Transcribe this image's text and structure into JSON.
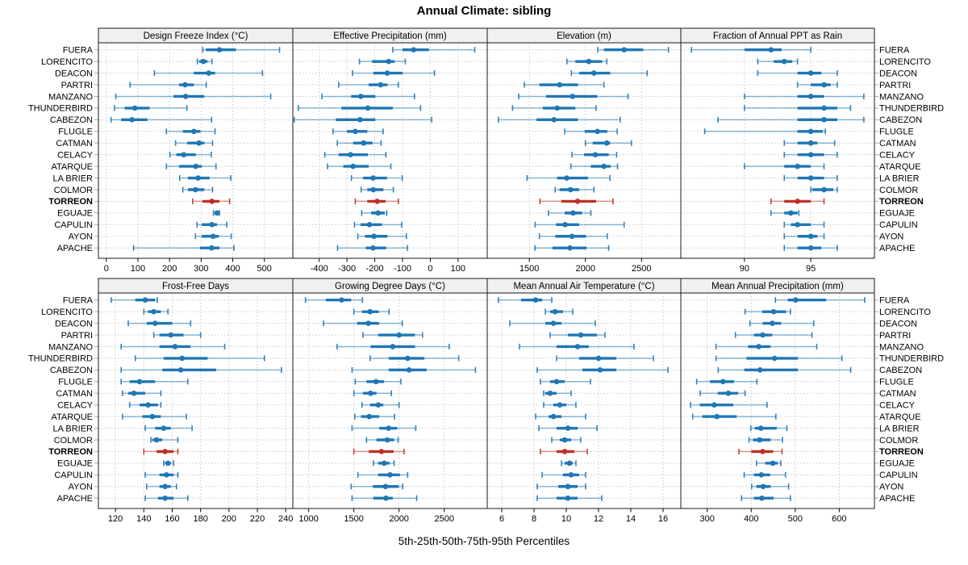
{
  "title": "Annual Climate: sibling",
  "caption": "5th-25th-50th-75th-95th Percentiles",
  "colors": {
    "series": "#1f77b4",
    "highlight": "#c03127",
    "strip_bg": "#f0f0f0",
    "grid": "#c8c8c8",
    "border": "#1a1a1a",
    "outer_tick": "#ababab"
  },
  "chart_data": {
    "type": "percentile-dotplot",
    "layout": "2x4 trellis, free x scales, shared station category axis, labels on both sides",
    "percentiles": [
      5,
      25,
      50,
      75,
      95
    ],
    "categories": [
      "FUERA",
      "LORENCITO",
      "DEACON",
      "PARTRI",
      "MANZANO",
      "THUNDERBIRD",
      "CABEZON",
      "FLUGLE",
      "CATMAN",
      "CELACY",
      "ATARQUE",
      "LA BRIER",
      "COLMOR",
      "TORREON",
      "EGUAJE",
      "CAPULIN",
      "AYON",
      "APACHE"
    ],
    "highlight": "TORREON",
    "panels": [
      {
        "title": "Design Freeze Index (°C)",
        "ticks": [
          0,
          100,
          200,
          300,
          400,
          500
        ],
        "xlim": [
          -25,
          590
        ],
        "values": [
          [
            305,
            315,
            358,
            410,
            548
          ],
          [
            288,
            294,
            307,
            320,
            334
          ],
          [
            152,
            277,
            324,
            344,
            494
          ],
          [
            75,
            230,
            249,
            277,
            316
          ],
          [
            30,
            213,
            251,
            310,
            520
          ],
          [
            26,
            58,
            90,
            137,
            255
          ],
          [
            15,
            47,
            81,
            130,
            333
          ],
          [
            190,
            242,
            277,
            298,
            344
          ],
          [
            219,
            256,
            293,
            310,
            336
          ],
          [
            201,
            222,
            245,
            283,
            332
          ],
          [
            190,
            230,
            283,
            302,
            347
          ],
          [
            232,
            258,
            290,
            327,
            394
          ],
          [
            242,
            258,
            282,
            310,
            336
          ],
          [
            273,
            304,
            334,
            358,
            390
          ],
          [
            339,
            345,
            350,
            354,
            358
          ],
          [
            287,
            302,
            334,
            350,
            381
          ],
          [
            282,
            302,
            338,
            356,
            395
          ],
          [
            86,
            296,
            333,
            358,
            404
          ]
        ]
      },
      {
        "title": "Effective Precipitation (mm)",
        "ticks": [
          -400,
          -300,
          -200,
          -100,
          0,
          100
        ],
        "xlim": [
          -495,
          205
        ],
        "values": [
          [
            -135,
            -100,
            -60,
            -5,
            160
          ],
          [
            -255,
            -210,
            -150,
            -128,
            -90
          ],
          [
            -280,
            -205,
            -155,
            -100,
            15
          ],
          [
            -330,
            -222,
            -179,
            -154,
            -115
          ],
          [
            -390,
            -285,
            -250,
            -198,
            -57
          ],
          [
            -475,
            -320,
            -225,
            -135,
            -35
          ],
          [
            -490,
            -340,
            -253,
            -198,
            5
          ],
          [
            -350,
            -300,
            -270,
            -227,
            -170
          ],
          [
            -335,
            -278,
            -240,
            -208,
            -177
          ],
          [
            -380,
            -330,
            -287,
            -225,
            -160
          ],
          [
            -370,
            -313,
            -278,
            -222,
            -142
          ],
          [
            -284,
            -242,
            -206,
            -156,
            -101
          ],
          [
            -249,
            -227,
            -205,
            -169,
            -133
          ],
          [
            -270,
            -227,
            -191,
            -161,
            -115
          ],
          [
            -247,
            -213,
            -188,
            -164,
            -157
          ],
          [
            -273,
            -251,
            -219,
            -174,
            -103
          ],
          [
            -261,
            -235,
            -203,
            -154,
            -86
          ],
          [
            -334,
            -232,
            -206,
            -159,
            -82
          ]
        ]
      },
      {
        "title": "Elevation (m)",
        "ticks": [
          1500,
          2000,
          2500
        ],
        "xlim": [
          1125,
          2850
        ],
        "values": [
          [
            2110,
            2165,
            2345,
            2515,
            2740
          ],
          [
            1835,
            1910,
            2030,
            2148,
            2190
          ],
          [
            1875,
            1945,
            2075,
            2220,
            2550
          ],
          [
            1455,
            1590,
            1770,
            1935,
            2165
          ],
          [
            1405,
            1650,
            1885,
            2105,
            2380
          ],
          [
            1350,
            1620,
            1748,
            1910,
            2095
          ],
          [
            1225,
            1565,
            1720,
            1933,
            2310
          ],
          [
            1815,
            1993,
            2107,
            2195,
            2283
          ],
          [
            2000,
            2065,
            2190,
            2220,
            2410
          ],
          [
            1880,
            1988,
            2088,
            2207,
            2278
          ],
          [
            1870,
            2048,
            2164,
            2224,
            2286
          ],
          [
            1480,
            1748,
            1833,
            2024,
            2219
          ],
          [
            1730,
            1770,
            1867,
            1945,
            2076
          ],
          [
            1595,
            1785,
            1930,
            2095,
            2245
          ],
          [
            1670,
            1815,
            1890,
            1970,
            2048
          ],
          [
            1552,
            1738,
            1819,
            1945,
            2345
          ],
          [
            1590,
            1731,
            1881,
            2005,
            2195
          ],
          [
            1550,
            1707,
            1862,
            2010,
            2207
          ]
        ]
      },
      {
        "title": "Fraction of Annual PPT as Rain",
        "ticks": [
          90,
          95
        ],
        "xlim": [
          85.2,
          99.8
        ],
        "values": [
          [
            86,
            90,
            92,
            92.8,
            95
          ],
          [
            91,
            92.2,
            93,
            93.6,
            94
          ],
          [
            91,
            94,
            95,
            95.8,
            97
          ],
          [
            94,
            95,
            96,
            96.5,
            97
          ],
          [
            90,
            94,
            95,
            96,
            99
          ],
          [
            90,
            94,
            96,
            97,
            98
          ],
          [
            88,
            94,
            96,
            97,
            99
          ],
          [
            87,
            94,
            95,
            95.9,
            96.1
          ],
          [
            93,
            94,
            95,
            95.5,
            96.8
          ],
          [
            93,
            94,
            95,
            96,
            97
          ],
          [
            90,
            93,
            94,
            95,
            96
          ],
          [
            93,
            94,
            95,
            96,
            97
          ],
          [
            95,
            95.1,
            96,
            96.7,
            97
          ],
          [
            92,
            93,
            94,
            95,
            96
          ],
          [
            92,
            93,
            93.5,
            94,
            94.1
          ],
          [
            93,
            93.5,
            94,
            95,
            96
          ],
          [
            93,
            94,
            95,
            95.5,
            96
          ],
          [
            93,
            94,
            95,
            95.8,
            97
          ]
        ]
      },
      {
        "title": "Frost-Free Days",
        "ticks": [
          120,
          140,
          160,
          180,
          200,
          220,
          240
        ],
        "xlim": [
          108,
          245
        ],
        "values": [
          [
            117,
            134,
            141,
            148,
            149.5
          ],
          [
            140,
            143,
            147,
            152,
            157
          ],
          [
            129,
            142,
            148,
            160,
            173
          ],
          [
            147,
            151,
            159,
            168,
            180
          ],
          [
            124,
            151,
            162,
            173,
            197
          ],
          [
            134,
            154,
            167,
            185,
            225
          ],
          [
            124,
            153,
            166,
            191,
            237
          ],
          [
            124,
            130,
            137,
            148,
            171
          ],
          [
            125,
            129,
            133,
            141,
            152
          ],
          [
            130,
            137,
            143,
            150,
            152
          ],
          [
            125,
            139,
            146,
            152,
            170
          ],
          [
            141,
            148,
            154,
            159,
            174
          ],
          [
            145,
            146,
            149,
            153,
            164
          ],
          [
            140,
            149,
            155,
            161,
            164
          ],
          [
            154,
            155,
            157,
            159,
            161
          ],
          [
            141,
            151,
            156,
            161,
            164
          ],
          [
            142,
            151,
            155,
            159,
            163
          ],
          [
            141,
            150,
            155,
            161,
            171
          ]
        ]
      },
      {
        "title": "Growing Degree Days (°C)",
        "ticks": [
          1000,
          1500,
          2000,
          2500
        ],
        "xlim": [
          825,
          2975
        ],
        "values": [
          [
            965,
            1190,
            1365,
            1470,
            1595
          ],
          [
            1500,
            1590,
            1680,
            1775,
            1890
          ],
          [
            1165,
            1535,
            1660,
            1780,
            2035
          ],
          [
            1600,
            1770,
            2000,
            2175,
            2260
          ],
          [
            1315,
            1685,
            1930,
            2175,
            2555
          ],
          [
            1680,
            1885,
            2095,
            2280,
            2660
          ],
          [
            1480,
            1885,
            2110,
            2305,
            2845
          ],
          [
            1515,
            1640,
            1745,
            1835,
            2020
          ],
          [
            1500,
            1600,
            1685,
            1750,
            1915
          ],
          [
            1590,
            1680,
            1770,
            1825,
            2000
          ],
          [
            1510,
            1580,
            1670,
            1780,
            1950
          ],
          [
            1480,
            1780,
            1885,
            1980,
            2185
          ],
          [
            1640,
            1750,
            1870,
            1945,
            1990
          ],
          [
            1500,
            1665,
            1805,
            1940,
            2055
          ],
          [
            1715,
            1770,
            1835,
            1895,
            1945
          ],
          [
            1545,
            1770,
            1900,
            2010,
            2095
          ],
          [
            1470,
            1710,
            1850,
            1995,
            2040
          ],
          [
            1480,
            1715,
            1855,
            1930,
            2195
          ]
        ]
      },
      {
        "title": "Mean Annual Air Temperature (°C)",
        "ticks": [
          6,
          8,
          10,
          12,
          14,
          16
        ],
        "xlim": [
          5.1,
          17.1
        ],
        "values": [
          [
            5.8,
            7.2,
            8.1,
            8.5,
            9.1
          ],
          [
            8.7,
            9.0,
            9.3,
            9.8,
            10.4
          ],
          [
            6.5,
            8.7,
            9.2,
            9.7,
            11.8
          ],
          [
            9.0,
            10.1,
            10.9,
            11.9,
            12.4
          ],
          [
            7.1,
            9.4,
            10.7,
            11.4,
            14.2
          ],
          [
            9.4,
            10.8,
            12.0,
            13.1,
            15.4
          ],
          [
            8.2,
            11.0,
            12.1,
            13.1,
            16.3
          ],
          [
            8.4,
            9.0,
            9.4,
            9.9,
            11.5
          ],
          [
            8.6,
            8.7,
            9.0,
            9.4,
            10.3
          ],
          [
            8.6,
            9.2,
            9.6,
            10.0,
            10.6
          ],
          [
            8.1,
            8.9,
            9.2,
            9.7,
            11.2
          ],
          [
            8.3,
            9.4,
            10.1,
            10.7,
            11.9
          ],
          [
            9.1,
            9.6,
            9.9,
            10.3,
            10.9
          ],
          [
            8.4,
            9.4,
            9.9,
            10.5,
            11.3
          ],
          [
            9.7,
            9.9,
            10.2,
            10.4,
            10.6
          ],
          [
            8.5,
            9.8,
            10.3,
            10.8,
            11.2
          ],
          [
            8.2,
            9.5,
            10.1,
            10.7,
            11.2
          ],
          [
            8.2,
            9.4,
            10.1,
            10.7,
            12.2
          ]
        ]
      },
      {
        "title": "Mean Annual Precipitation (mm)",
        "ticks": [
          300,
          400,
          500,
          600
        ],
        "xlim": [
          240,
          680
        ],
        "values": [
          [
            455,
            483,
            501,
            570,
            658
          ],
          [
            386,
            425,
            451,
            479,
            489
          ],
          [
            397,
            426,
            448,
            468,
            542
          ],
          [
            364,
            406,
            426,
            448,
            538
          ],
          [
            320,
            393,
            417,
            444,
            549
          ],
          [
            320,
            389,
            453,
            506,
            606
          ],
          [
            325,
            384,
            420,
            506,
            626
          ],
          [
            276,
            306,
            336,
            361,
            413
          ],
          [
            284,
            324,
            348,
            370,
            386
          ],
          [
            262,
            283,
            316,
            359,
            436
          ],
          [
            267,
            289,
            322,
            367,
            456
          ],
          [
            399,
            408,
            422,
            458,
            481
          ],
          [
            395,
            404,
            419,
            444,
            471
          ],
          [
            372,
            400,
            426,
            450,
            470
          ],
          [
            412,
            432,
            449,
            460,
            467
          ],
          [
            384,
            406,
            423,
            443,
            478
          ],
          [
            401,
            412,
            427,
            444,
            485
          ],
          [
            378,
            406,
            424,
            451,
            489
          ]
        ]
      }
    ]
  }
}
